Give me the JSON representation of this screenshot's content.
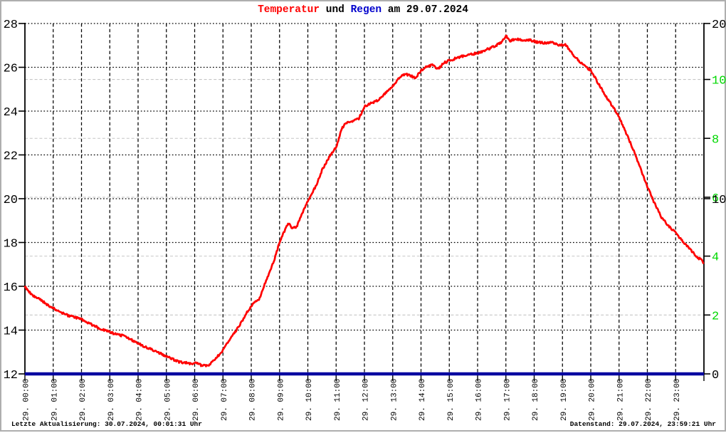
{
  "title": {
    "temperatur": "Temperatur",
    "und": " und ",
    "regen": "Regen",
    "date_suffix": " am 29.07.2024"
  },
  "status_bar": {
    "left": "Letzte Aktualisierung: 30.07.2024, 00:01:31 Uhr",
    "right": "Datenstand: 29.07.2024, 23:59:21 Uhr"
  },
  "colors": {
    "temperature": "#ff0000",
    "rain_line": "#0000a0",
    "regen_title": "#0000cc",
    "green_axis_labels": "#00d800",
    "axis_black": "#000000",
    "grid_major": "#000000",
    "grid_minor": "#c6c6c6",
    "background": "#ffffff"
  },
  "chart_data": {
    "type": "line",
    "title": "Temperatur und Regen am 29.07.2024",
    "grid": "dotted major (temperature steps) + dashed minor (rain steps), hourly vertical dashed lines",
    "x_axis": {
      "labels": [
        "29. 00:00",
        "29. 01:00",
        "29. 02:00",
        "29. 03:00",
        "29. 04:00",
        "29. 05:00",
        "29. 06:00",
        "29. 07:00",
        "29. 08:00",
        "29. 09:00",
        "29. 10:00",
        "29. 11:00",
        "29. 12:00",
        "29. 13:00",
        "29. 14:00",
        "29. 15:00",
        "29. 16:00",
        "29. 17:00",
        "29. 18:00",
        "29. 19:00",
        "29. 20:00",
        "29. 21:00",
        "29. 22:00",
        "29. 23:00"
      ],
      "hours_span": [
        0,
        24
      ]
    },
    "left_axis": {
      "min": 12,
      "max": 28,
      "tick_step": 2,
      "ticks": [
        12,
        14,
        16,
        18,
        20,
        22,
        24,
        26,
        28
      ]
    },
    "right_axis_black": {
      "min": 0,
      "max": 20,
      "ticks": [
        0,
        10,
        20
      ]
    },
    "right_axis_green": {
      "min": 0,
      "max": 11.9,
      "ticks": [
        2,
        4,
        6,
        8,
        10
      ]
    },
    "series": [
      {
        "name": "Temperatur",
        "axis": "left",
        "color": "#ff0000",
        "points": [
          [
            0,
            16.0
          ],
          [
            0.1,
            15.8
          ],
          [
            0.3,
            15.55
          ],
          [
            0.6,
            15.35
          ],
          [
            0.8,
            15.15
          ],
          [
            1,
            15.0
          ],
          [
            1.2,
            14.85
          ],
          [
            1.45,
            14.7
          ],
          [
            1.7,
            14.6
          ],
          [
            2,
            14.5
          ],
          [
            2.2,
            14.35
          ],
          [
            2.45,
            14.2
          ],
          [
            2.7,
            14.05
          ],
          [
            3,
            13.9
          ],
          [
            3.2,
            13.82
          ],
          [
            3.45,
            13.75
          ],
          [
            3.7,
            13.6
          ],
          [
            4,
            13.4
          ],
          [
            4.3,
            13.2
          ],
          [
            4.6,
            13.05
          ],
          [
            4.8,
            12.92
          ],
          [
            5,
            12.8
          ],
          [
            5.2,
            12.68
          ],
          [
            5.45,
            12.55
          ],
          [
            5.7,
            12.5
          ],
          [
            5.95,
            12.45
          ],
          [
            6.1,
            12.52
          ],
          [
            6.25,
            12.38
          ],
          [
            6.4,
            12.36
          ],
          [
            6.55,
            12.45
          ],
          [
            6.7,
            12.65
          ],
          [
            6.85,
            12.85
          ],
          [
            7,
            13.1
          ],
          [
            7.2,
            13.5
          ],
          [
            7.4,
            13.85
          ],
          [
            7.6,
            14.25
          ],
          [
            7.8,
            14.7
          ],
          [
            8,
            15.1
          ],
          [
            8.15,
            15.3
          ],
          [
            8.3,
            15.45
          ],
          [
            8.45,
            16.0
          ],
          [
            8.6,
            16.5
          ],
          [
            8.8,
            17.15
          ],
          [
            9,
            18.0
          ],
          [
            9.15,
            18.45
          ],
          [
            9.3,
            18.9
          ],
          [
            9.45,
            18.65
          ],
          [
            9.6,
            18.7
          ],
          [
            9.8,
            19.3
          ],
          [
            10,
            19.9
          ],
          [
            10.1,
            20.15
          ],
          [
            10.3,
            20.6
          ],
          [
            10.5,
            21.3
          ],
          [
            10.75,
            21.9
          ],
          [
            11,
            22.35
          ],
          [
            11.2,
            23.2
          ],
          [
            11.35,
            23.45
          ],
          [
            11.6,
            23.55
          ],
          [
            11.8,
            23.65
          ],
          [
            12,
            24.2
          ],
          [
            12.2,
            24.35
          ],
          [
            12.4,
            24.45
          ],
          [
            12.6,
            24.6
          ],
          [
            12.8,
            24.9
          ],
          [
            13,
            25.15
          ],
          [
            13.25,
            25.55
          ],
          [
            13.45,
            25.7
          ],
          [
            13.65,
            25.6
          ],
          [
            13.8,
            25.5
          ],
          [
            14,
            25.85
          ],
          [
            14.2,
            26.05
          ],
          [
            14.4,
            26.1
          ],
          [
            14.6,
            25.9
          ],
          [
            14.8,
            26.2
          ],
          [
            15,
            26.3
          ],
          [
            15.3,
            26.45
          ],
          [
            15.6,
            26.55
          ],
          [
            16,
            26.65
          ],
          [
            16.3,
            26.8
          ],
          [
            16.6,
            26.95
          ],
          [
            16.85,
            27.15
          ],
          [
            17,
            27.45
          ],
          [
            17.15,
            27.2
          ],
          [
            17.35,
            27.3
          ],
          [
            17.6,
            27.25
          ],
          [
            17.85,
            27.25
          ],
          [
            18.1,
            27.15
          ],
          [
            18.4,
            27.1
          ],
          [
            18.65,
            27.15
          ],
          [
            18.9,
            27.0
          ],
          [
            19.1,
            27.05
          ],
          [
            19.3,
            26.7
          ],
          [
            19.5,
            26.4
          ],
          [
            19.75,
            26.1
          ],
          [
            20,
            25.85
          ],
          [
            20.25,
            25.3
          ],
          [
            20.5,
            24.75
          ],
          [
            20.75,
            24.25
          ],
          [
            21,
            23.75
          ],
          [
            21.25,
            23.0
          ],
          [
            21.5,
            22.25
          ],
          [
            21.75,
            21.4
          ],
          [
            22,
            20.55
          ],
          [
            22.25,
            19.8
          ],
          [
            22.5,
            19.15
          ],
          [
            22.75,
            18.75
          ],
          [
            23,
            18.45
          ],
          [
            23.25,
            18.05
          ],
          [
            23.5,
            17.7
          ],
          [
            23.75,
            17.35
          ],
          [
            23.9,
            17.2
          ],
          [
            23.98,
            17.1
          ]
        ]
      },
      {
        "name": "Regen",
        "axis": "right_green",
        "color": "#0000a0",
        "points": [
          [
            0,
            0
          ],
          [
            24,
            0
          ]
        ]
      }
    ]
  }
}
